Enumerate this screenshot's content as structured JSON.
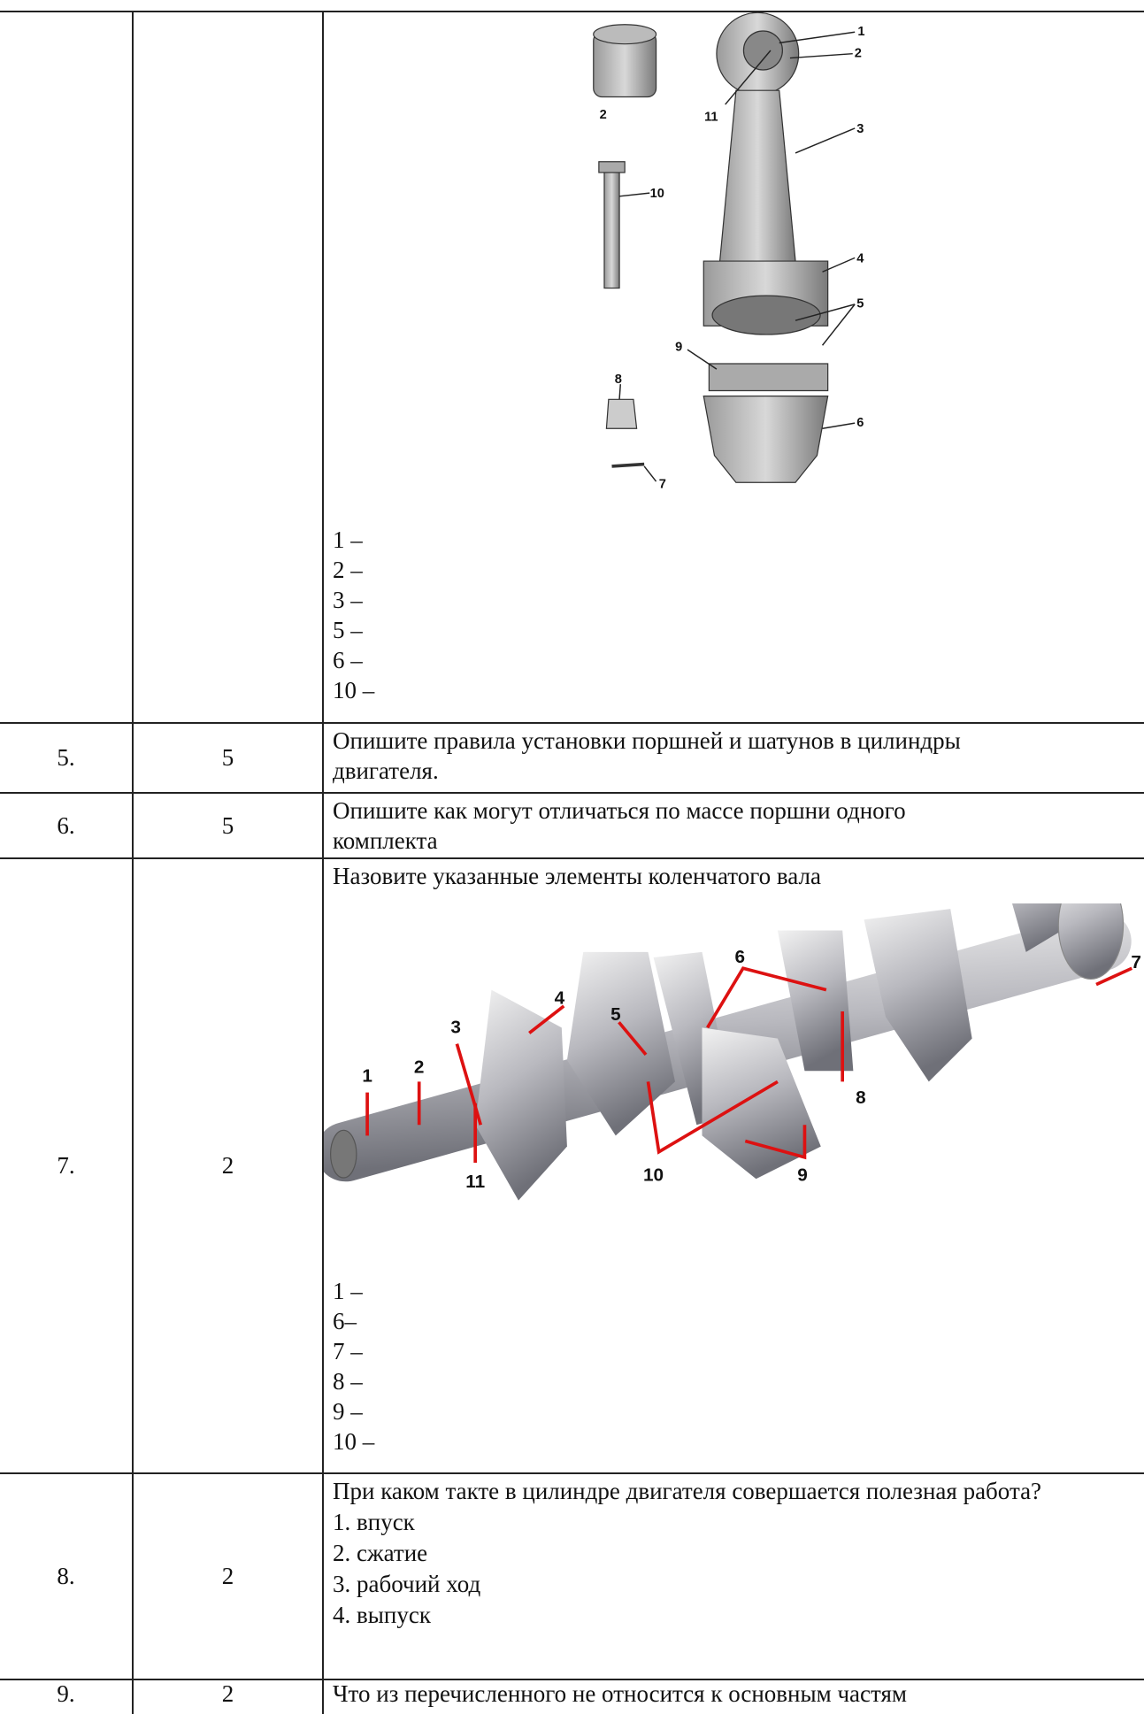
{
  "table": {
    "rows": [
      {
        "figure": {
          "labels": [
            "1",
            "2",
            "11",
            "3",
            "2",
            "10",
            "4",
            "5",
            "9",
            "8",
            "6",
            "7"
          ]
        },
        "items": [
          "1 –",
          "2 –",
          "3 –",
          "5 –",
          "6 –",
          "10 –"
        ]
      },
      {
        "number": "5.",
        "points": "5",
        "question": "Опишите правила установки поршней и шатунов в цилиндры двигателя."
      },
      {
        "number": "6.",
        "points": "5",
        "question": "Опишите как могут отличаться по массе поршни одного комплекта"
      },
      {
        "number": "7.",
        "points": "2",
        "question": "Назовите указанные элементы коленчатого вала",
        "figure": {
          "labels": [
            "1",
            "2",
            "3",
            "4",
            "5",
            "6",
            "7",
            "8",
            "9",
            "10",
            "11"
          ]
        },
        "items": [
          "1 –",
          "6–",
          "7 –",
          "8 –",
          "9 –",
          "10 –"
        ]
      },
      {
        "number": "8.",
        "points": "2",
        "question": "При каком такте в цилиндре двигателя совершается полезная работа?",
        "options": [
          "1. впуск",
          "2. сжатие",
          "3. рабочий ход",
          "4. выпуск"
        ]
      },
      {
        "number": "9.",
        "points": "2",
        "question": "Что из перечисленного не относится к основным частям"
      }
    ]
  }
}
